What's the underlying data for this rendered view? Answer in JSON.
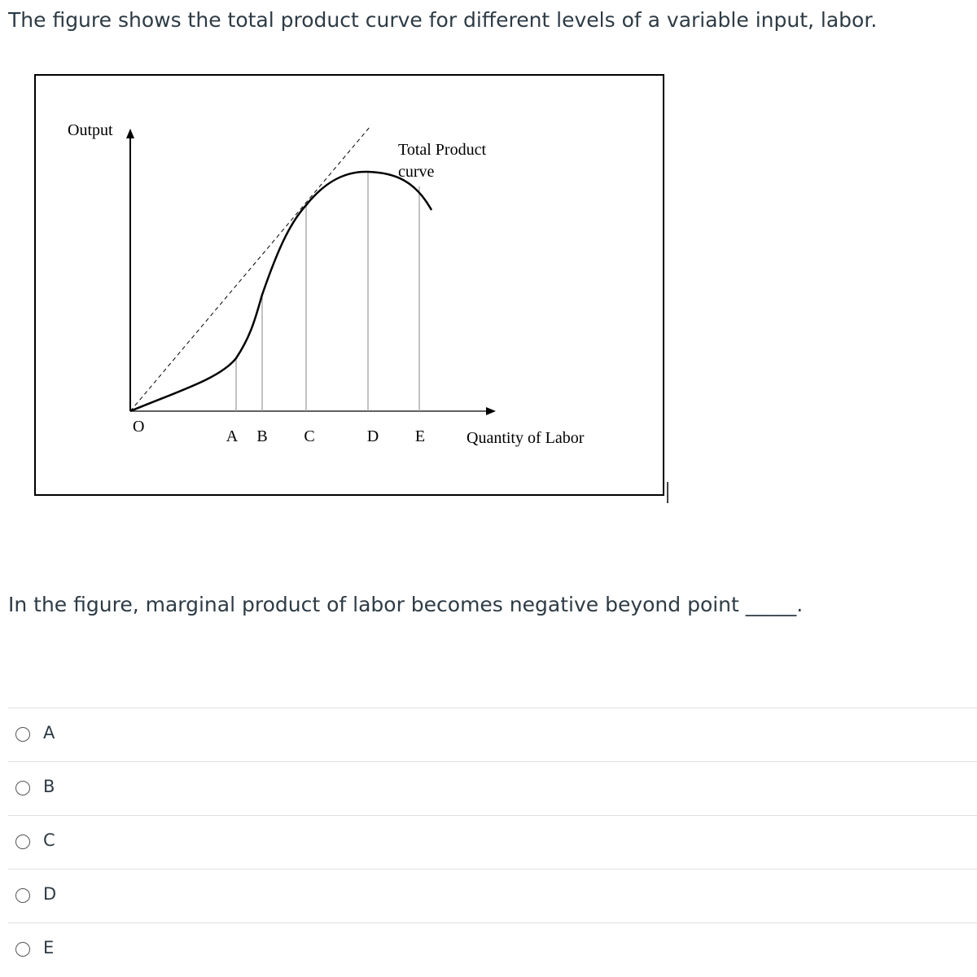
{
  "question": {
    "intro": "The figure shows the total product curve for different levels of a variable input, labor.",
    "figure": {
      "y_axis_label": "Output",
      "x_axis_label": "Quantity of Labor",
      "origin_label": "O",
      "curve_label": [
        "Total Product",
        "curve"
      ],
      "points": [
        "A",
        "B",
        "C",
        "D",
        "E"
      ]
    },
    "prompt": "In the figure, marginal product of labor becomes negative beyond point",
    "blank": "_____.",
    "options": [
      "A",
      "B",
      "C",
      "D",
      "E"
    ]
  }
}
